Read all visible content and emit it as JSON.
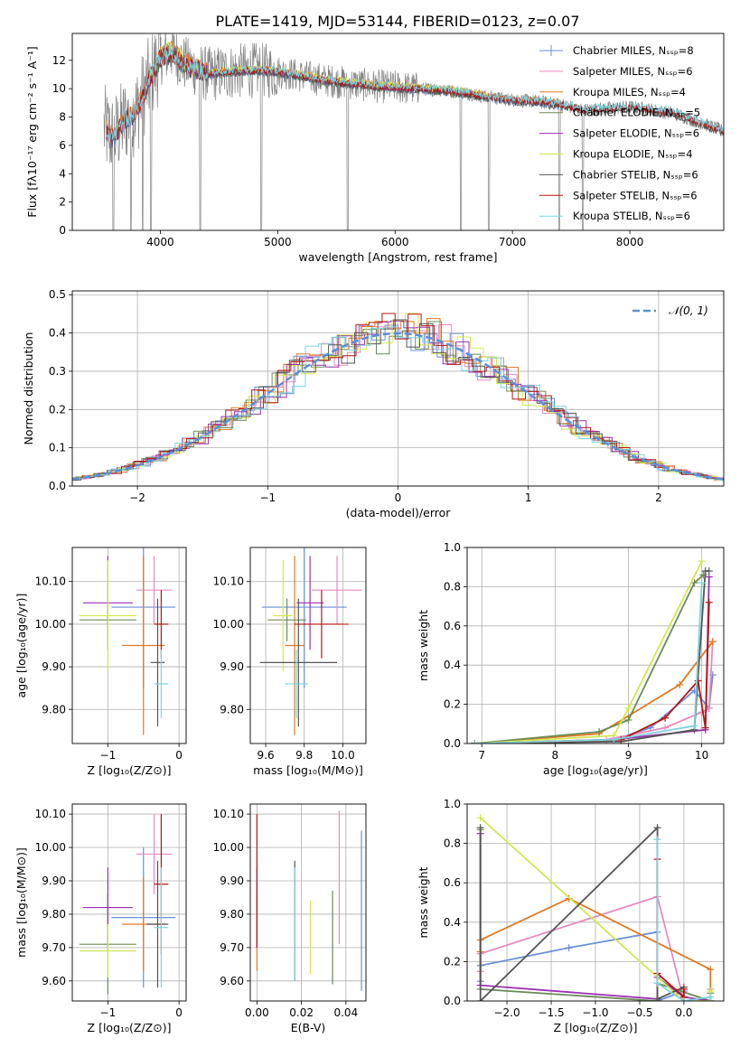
{
  "figure": {
    "title": "PLATE=1419, MJD=53144, FIBERID=0123, z=0.07"
  },
  "colors": {
    "chabrier_miles": "#6b8fd6",
    "salpeter_miles": "#e58bbf",
    "kroupa_miles": "#e07a22",
    "chabrier_elodie": "#6b8a58",
    "salpeter_elodie": "#9b2fb3",
    "kroupa_elodie": "#d2e851",
    "chabrier_stelib": "#555555",
    "salpeter_stelib": "#b51414",
    "kroupa_stelib": "#7fd3dd",
    "data": "#808080",
    "normal": "#5a8fd8"
  },
  "chart_data": [
    {
      "id": "spectrum",
      "type": "line",
      "xlabel": "wavelength [Angstrom, rest frame]",
      "ylabel": "Flux [fλ10⁻¹⁷ erg cm⁻² s⁻¹ A⁻¹]",
      "xlim": [
        3250,
        8800
      ],
      "ylim": [
        0,
        13.9
      ],
      "xticks": [
        4000,
        5000,
        6000,
        7000,
        8000
      ],
      "yticks": [
        0,
        2,
        4,
        6,
        8,
        10,
        12
      ],
      "legend_placement": "top-right",
      "legend": [
        {
          "name": "Chabrier MILES, Nₛₛₚ=8",
          "color_key": "chabrier_miles"
        },
        {
          "name": "Salpeter MILES, Nₛₛₚ=6",
          "color_key": "salpeter_miles"
        },
        {
          "name": "Kroupa MILES, Nₛₛₚ=4",
          "color_key": "kroupa_miles"
        },
        {
          "name": "Chabrier ELODIE, Nₛₛₚ=5",
          "color_key": "chabrier_elodie"
        },
        {
          "name": "Salpeter ELODIE, Nₛₛₚ=6",
          "color_key": "salpeter_elodie"
        },
        {
          "name": "Kroupa ELODIE, Nₛₛₚ=4",
          "color_key": "kroupa_elodie"
        },
        {
          "name": "Chabrier STELIB, Nₛₛₚ=6",
          "color_key": "chabrier_stelib"
        },
        {
          "name": "Salpeter STELIB, Nₛₛₚ=6",
          "color_key": "salpeter_stelib"
        },
        {
          "name": "Kroupa STELIB, Nₛₛₚ=6",
          "color_key": "kroupa_stelib"
        }
      ],
      "continuum": {
        "x": [
          3520,
          3600,
          3700,
          3800,
          3900,
          4000,
          4100,
          4200,
          4300,
          4400,
          4600,
          4800,
          5000,
          5200,
          5400,
          5600,
          5800,
          6000,
          6200,
          6400,
          6600,
          6800,
          7000,
          7200,
          7400,
          7600,
          7800,
          8000,
          8200,
          8400,
          8600,
          8800
        ],
        "y": [
          7.2,
          6.5,
          7.8,
          8.5,
          10.5,
          12.2,
          12.6,
          11.8,
          11.4,
          11.0,
          11.2,
          11.3,
          11.2,
          10.9,
          10.6,
          10.4,
          10.2,
          10.1,
          10.0,
          9.9,
          9.7,
          9.4,
          9.2,
          9.1,
          8.9,
          8.5,
          8.6,
          8.7,
          8.5,
          8.2,
          7.6,
          7.0
        ]
      },
      "data_range": [
        3520,
        8800
      ],
      "absorption_dips": [
        3600,
        3750,
        3850,
        3920,
        4340,
        4860,
        5595,
        6560,
        6800,
        7400,
        7600
      ]
    },
    {
      "id": "residuals",
      "type": "histogram",
      "xlabel": "(data-model)/error",
      "ylabel": "Normed distribution",
      "xlim": [
        -2.5,
        2.5
      ],
      "ylim": [
        0,
        0.51
      ],
      "xticks": [
        -2,
        -1,
        0,
        1,
        2
      ],
      "yticks": [
        0.0,
        0.1,
        0.2,
        0.3,
        0.4,
        0.5
      ],
      "grid": true,
      "legend_placement": "top-right",
      "legend": [
        {
          "name": "𝒩(0, 1)",
          "color_key": "normal"
        }
      ],
      "normal": {
        "mean": 0,
        "sigma": 1
      }
    },
    {
      "id": "age_vs_Z",
      "type": "errorbar",
      "xlabel": "Z [log₁₀(Z/Z⊙)]",
      "ylabel": "age  [log₁₀(age/yr)]",
      "xlim": [
        -1.5,
        0.1
      ],
      "ylim": [
        9.72,
        10.18
      ],
      "xticks": [
        -1,
        0
      ],
      "yticks": [
        9.8,
        9.9,
        10.0,
        10.1
      ],
      "grid": true,
      "points": [
        {
          "c": "chabrier_miles",
          "x": -0.5,
          "xerr": 0.45,
          "y": 10.04,
          "yerr": 0.19
        },
        {
          "c": "salpeter_miles",
          "x": -0.35,
          "xerr": 0.25,
          "y": 10.08,
          "yerr": 0.08
        },
        {
          "c": "kroupa_miles",
          "x": -0.5,
          "xerr": 0.3,
          "y": 9.95,
          "yerr": 0.21
        },
        {
          "c": "chabrier_elodie",
          "x": -1.0,
          "xerr": 0.4,
          "y": 10.01,
          "yerr": 0.05
        },
        {
          "c": "salpeter_elodie",
          "x": -1.0,
          "xerr": 0.35,
          "y": 10.05,
          "yerr": 0.11
        },
        {
          "c": "kroupa_elodie",
          "x": -1.0,
          "xerr": 0.4,
          "y": 10.02,
          "yerr": 0.13
        },
        {
          "c": "chabrier_stelib",
          "x": -0.3,
          "xerr": 0.1,
          "y": 9.91,
          "yerr": 0.15
        },
        {
          "c": "salpeter_stelib",
          "x": -0.25,
          "xerr": 0.1,
          "y": 10.0,
          "yerr": 0.08
        },
        {
          "c": "kroupa_stelib",
          "x": -0.25,
          "xerr": 0.1,
          "y": 9.86,
          "yerr": 0.08
        }
      ]
    },
    {
      "id": "age_vs_mass",
      "type": "errorbar",
      "xlabel": "mass [log₁₀(M/M⊙)]",
      "ylabel": "",
      "xlim": [
        9.52,
        10.12
      ],
      "ylim": [
        9.72,
        10.18
      ],
      "xticks": [
        9.6,
        9.8,
        10.0
      ],
      "yticks": [
        9.8,
        9.9,
        10.0,
        10.1
      ],
      "grid": true,
      "points": [
        {
          "c": "chabrier_miles",
          "x": 9.8,
          "xerr": 0.22,
          "y": 10.04,
          "yerr": 0.19
        },
        {
          "c": "salpeter_miles",
          "x": 9.97,
          "xerr": 0.13,
          "y": 10.08,
          "yerr": 0.08
        },
        {
          "c": "kroupa_miles",
          "x": 9.75,
          "xerr": 0.05,
          "y": 9.95,
          "yerr": 0.21
        },
        {
          "c": "chabrier_elodie",
          "x": 9.71,
          "xerr": 0.1,
          "y": 10.01,
          "yerr": 0.05
        },
        {
          "c": "salpeter_elodie",
          "x": 9.83,
          "xerr": 0.07,
          "y": 10.05,
          "yerr": 0.11
        },
        {
          "c": "kroupa_elodie",
          "x": 9.69,
          "xerr": 0.05,
          "y": 10.02,
          "yerr": 0.13
        },
        {
          "c": "chabrier_stelib",
          "x": 9.77,
          "xerr": 0.2,
          "y": 9.91,
          "yerr": 0.15
        },
        {
          "c": "salpeter_stelib",
          "x": 9.89,
          "xerr": 0.14,
          "y": 10.0,
          "yerr": 0.08
        },
        {
          "c": "kroupa_stelib",
          "x": 9.76,
          "xerr": 0.06,
          "y": 9.86,
          "yerr": 0.08
        }
      ]
    },
    {
      "id": "weight_vs_age",
      "type": "line",
      "xlabel": "age  [log₁₀(age/yr)]",
      "ylabel": "mass weight",
      "xlim": [
        6.8,
        10.3
      ],
      "ylim": [
        0,
        1.0
      ],
      "xticks": [
        7,
        8,
        9,
        10
      ],
      "yticks": [
        0.0,
        0.2,
        0.4,
        0.6,
        0.8,
        1.0
      ],
      "grid": true,
      "series": [
        {
          "c": "chabrier_miles",
          "x": [
            6.9,
            8.8,
            9.3,
            9.9,
            10.1,
            10.15
          ],
          "y": [
            0.0,
            0.02,
            0.08,
            0.27,
            0.18,
            0.35
          ]
        },
        {
          "c": "salpeter_miles",
          "x": [
            6.9,
            8.7,
            9.5,
            10.0,
            10.1,
            10.15
          ],
          "y": [
            0.0,
            0.02,
            0.08,
            0.16,
            0.18,
            0.52
          ]
        },
        {
          "c": "kroupa_miles",
          "x": [
            6.9,
            8.6,
            9.7,
            10.15
          ],
          "y": [
            0.0,
            0.05,
            0.3,
            0.52
          ]
        },
        {
          "c": "chabrier_elodie",
          "x": [
            6.9,
            8.6,
            9.0,
            9.9,
            10.02
          ],
          "y": [
            0.0,
            0.06,
            0.12,
            0.82,
            0.86
          ]
        },
        {
          "c": "salpeter_elodie",
          "x": [
            6.9,
            8.8,
            10.05,
            10.1
          ],
          "y": [
            0.0,
            0.02,
            0.07,
            0.85
          ]
        },
        {
          "c": "kroupa_elodie",
          "x": [
            6.9,
            8.8,
            9.0,
            10.0
          ],
          "y": [
            0.0,
            0.04,
            0.18,
            0.93
          ]
        },
        {
          "c": "chabrier_stelib",
          "x": [
            6.9,
            8.9,
            9.9,
            10.05,
            10.1
          ],
          "y": [
            0.0,
            0.01,
            0.07,
            0.88,
            0.88
          ]
        },
        {
          "c": "salpeter_stelib",
          "x": [
            6.9,
            8.9,
            9.5,
            9.95,
            10.05,
            10.1
          ],
          "y": [
            0.0,
            0.02,
            0.13,
            0.32,
            0.08,
            0.72
          ]
        },
        {
          "c": "kroupa_stelib",
          "x": [
            6.9,
            8.8,
            9.9,
            10.0
          ],
          "y": [
            0.0,
            0.02,
            0.09,
            0.82
          ]
        }
      ]
    },
    {
      "id": "mass_vs_Z",
      "type": "errorbar",
      "xlabel": "Z [log₁₀(Z/Z⊙)]",
      "ylabel": "mass [log₁₀(M/M⊙)]",
      "xlim": [
        -1.5,
        0.1
      ],
      "ylim": [
        9.54,
        10.13
      ],
      "xticks": [
        -1,
        0
      ],
      "yticks": [
        9.6,
        9.7,
        9.8,
        9.9,
        10.0,
        10.1
      ],
      "grid": true,
      "points": [
        {
          "c": "chabrier_miles",
          "x": -0.5,
          "xerr": 0.45,
          "y": 9.79,
          "yerr": 0.21
        },
        {
          "c": "salpeter_miles",
          "x": -0.35,
          "xerr": 0.25,
          "y": 9.98,
          "yerr": 0.12
        },
        {
          "c": "kroupa_miles",
          "x": -0.5,
          "xerr": 0.3,
          "y": 9.77,
          "yerr": 0.14
        },
        {
          "c": "chabrier_elodie",
          "x": -1.0,
          "xerr": 0.4,
          "y": 9.71,
          "yerr": 0.15
        },
        {
          "c": "salpeter_elodie",
          "x": -1.0,
          "xerr": 0.35,
          "y": 9.82,
          "yerr": 0.12
        },
        {
          "c": "kroupa_elodie",
          "x": -1.0,
          "xerr": 0.4,
          "y": 9.69,
          "yerr": 0.08
        },
        {
          "c": "chabrier_stelib",
          "x": -0.3,
          "xerr": 0.15,
          "y": 9.77,
          "yerr": 0.19
        },
        {
          "c": "salpeter_stelib",
          "x": -0.25,
          "xerr": 0.1,
          "y": 9.89,
          "yerr": 0.21
        },
        {
          "c": "kroupa_stelib",
          "x": -0.25,
          "xerr": 0.1,
          "y": 9.76,
          "yerr": 0.18
        }
      ]
    },
    {
      "id": "mass_vs_ebv",
      "type": "errorbar",
      "xlabel": "E(B-V)",
      "ylabel": "",
      "xlim": [
        -0.003,
        0.049
      ],
      "ylim": [
        9.54,
        10.13
      ],
      "xticks": [
        0.0,
        0.02,
        0.04
      ],
      "yticks": [
        9.6,
        9.7,
        9.8,
        9.9,
        10.0,
        10.1
      ],
      "grid": true,
      "points": [
        {
          "c": "chabrier_miles",
          "x": 0.047,
          "xerr": 0,
          "y": 9.81,
          "yerr": 0.24
        },
        {
          "c": "salpeter_miles",
          "x": 0.037,
          "xerr": 0,
          "y": 9.91,
          "yerr": 0.2
        },
        {
          "c": "kroupa_miles",
          "x": 0.0,
          "xerr": 0,
          "y": 9.75,
          "yerr": 0.12
        },
        {
          "c": "chabrier_elodie",
          "x": 0.034,
          "xerr": 0,
          "y": 9.73,
          "yerr": 0.14
        },
        {
          "c": "salpeter_elodie",
          "x": 0.0,
          "xerr": 0,
          "y": 9.82,
          "yerr": 0.12
        },
        {
          "c": "kroupa_elodie",
          "x": 0.024,
          "xerr": 0,
          "y": 9.73,
          "yerr": 0.11
        },
        {
          "c": "chabrier_stelib",
          "x": 0.017,
          "xerr": 0,
          "y": 9.78,
          "yerr": 0.18
        },
        {
          "c": "salpeter_stelib",
          "x": 0.0,
          "xerr": 0,
          "y": 9.9,
          "yerr": 0.2
        },
        {
          "c": "kroupa_stelib",
          "x": 0.017,
          "xerr": 0,
          "y": 9.77,
          "yerr": 0.17
        }
      ]
    },
    {
      "id": "weight_vs_Z",
      "type": "line",
      "xlabel": "Z [log₁₀(Z/Z⊙)]",
      "ylabel": "mass weight",
      "xlim": [
        -2.45,
        0.45
      ],
      "ylim": [
        0,
        1.0
      ],
      "xticks": [
        -2.0,
        -1.5,
        -1.0,
        -0.5,
        0.0
      ],
      "yticks": [
        0.0,
        0.2,
        0.4,
        0.6,
        0.8,
        1.0
      ],
      "grid": true,
      "series": [
        {
          "c": "chabrier_miles",
          "x": [
            -2.3,
            -2.3,
            -1.3,
            -0.3,
            -0.3,
            0.0
          ],
          "y": [
            0.1,
            0.18,
            0.27,
            0.35,
            0.0,
            0.05
          ]
        },
        {
          "c": "salpeter_miles",
          "x": [
            -2.3,
            -2.3,
            -0.3,
            0.0,
            0.3,
            0.3
          ],
          "y": [
            0.15,
            0.24,
            0.53,
            0.0,
            0.0,
            0.06
          ]
        },
        {
          "c": "kroupa_miles",
          "x": [
            -2.3,
            -2.3,
            -1.3,
            0.3,
            0.3
          ],
          "y": [
            0.25,
            0.31,
            0.52,
            0.16,
            0.0
          ]
        },
        {
          "c": "chabrier_elodie",
          "x": [
            -2.3,
            -2.3,
            -0.3,
            -0.3,
            0.3,
            0.3
          ],
          "y": [
            0.87,
            0.06,
            0.0,
            0.09,
            0.0,
            0.04
          ]
        },
        {
          "c": "salpeter_elodie",
          "x": [
            -2.3,
            -2.3,
            -0.3,
            -0.3,
            0.0,
            0.3
          ],
          "y": [
            0.85,
            0.08,
            0.01,
            0.12,
            0.02,
            0.0
          ]
        },
        {
          "c": "kroupa_elodie",
          "x": [
            -2.3,
            0.0,
            0.3,
            0.3
          ],
          "y": [
            0.93,
            0.0,
            0.0,
            0.05
          ]
        },
        {
          "c": "chabrier_stelib",
          "x": [
            -2.3,
            -2.3,
            -0.3,
            -0.3,
            0.0
          ],
          "y": [
            0.88,
            0.0,
            0.88,
            0.01,
            0.07
          ]
        },
        {
          "c": "salpeter_stelib",
          "x": [
            -0.3,
            -0.3,
            0.0,
            0.0
          ],
          "y": [
            0.72,
            0.14,
            0.02,
            0.06
          ]
        },
        {
          "c": "kroupa_stelib",
          "x": [
            -0.3,
            -0.3,
            0.0,
            0.3
          ],
          "y": [
            0.82,
            0.09,
            0.0,
            0.02
          ]
        }
      ]
    }
  ]
}
